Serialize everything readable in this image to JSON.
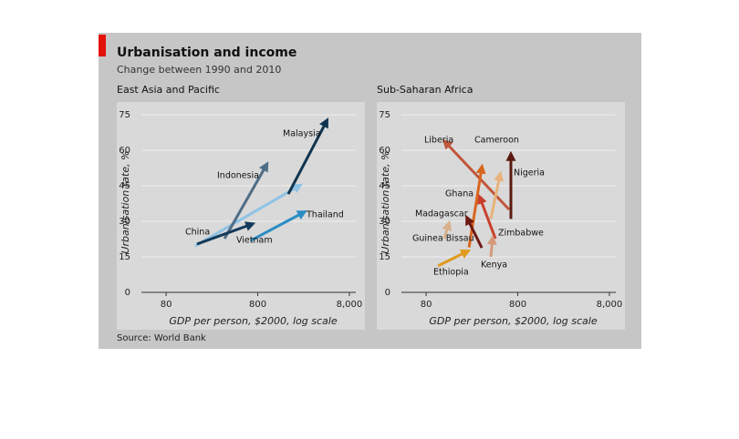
{
  "header": {
    "title": "Urbanisation and income",
    "subtitle": "Change between 1990 and 2010",
    "source": "Source: World Bank"
  },
  "chart_data": [
    {
      "type": "arrow",
      "title": "East Asia and Pacific",
      "x_label": "GDP per person, $2000, log scale",
      "y_label": "Urbanisation rate, %",
      "xscale": "log",
      "xlim": [
        43,
        9400
      ],
      "ylim": [
        0,
        80
      ],
      "xticks": [
        80,
        800,
        {
          "value": 8000,
          "label": "8,000"
        }
      ],
      "yticks": [
        0,
        15,
        30,
        45,
        60,
        75
      ],
      "grid": true,
      "series": [
        {
          "name": "China",
          "color": "#8ec3e6",
          "x": [
            166,
            2270
          ],
          "values": [
            19.6,
            45
          ]
        },
        {
          "name": "Indonesia",
          "color": "#4f6d85",
          "x": [
            347,
            996
          ],
          "values": [
            22.7,
            53.8
          ]
        },
        {
          "name": "Malaysia",
          "color": "#10344f",
          "x": [
            1723,
            4510
          ],
          "values": [
            41.5,
            72.3
          ]
        },
        {
          "name": "Thailand",
          "color": "#2b8dc4",
          "x": [
            673,
            2540
          ],
          "values": [
            21.9,
            33.8
          ]
        },
        {
          "name": "Vietnam",
          "color": "#133a5a",
          "x": [
            174,
            689
          ],
          "values": [
            20.4,
            28.8
          ]
        }
      ]
    },
    {
      "type": "arrow",
      "title": "Sub-Saharan Africa",
      "x_label": "GDP per person, $2000, log scale",
      "y_label": "Urbanisation rate, %",
      "xscale": "log",
      "xlim": [
        43,
        9400
      ],
      "ylim": [
        0,
        80
      ],
      "xticks": [
        80,
        800,
        {
          "value": 8000,
          "label": "8,000"
        }
      ],
      "yticks": [
        0,
        15,
        30,
        45,
        60,
        75
      ],
      "grid": true,
      "series": [
        {
          "name": "Liberia",
          "color": "#c0573a",
          "x": [
            643,
            129
          ],
          "values": [
            35,
            63.5
          ]
        },
        {
          "name": "Cameroon",
          "color": "#e8b27a",
          "x": [
            406,
            512
          ],
          "values": [
            31,
            49.6
          ]
        },
        {
          "name": "Nigeria",
          "color": "#5a1a10",
          "x": [
            673,
            673
          ],
          "values": [
            31,
            58
          ]
        },
        {
          "name": "Ghana",
          "color": "#d9661e",
          "x": [
            235,
            324
          ],
          "values": [
            19,
            52.7
          ]
        },
        {
          "name": "Madagascar",
          "color": "#6e1a12",
          "x": [
            324,
            225
          ],
          "values": [
            18.8,
            31.2
          ]
        },
        {
          "name": "Zimbabwe",
          "color": "#c8402c",
          "x": [
            456,
            309
          ],
          "values": [
            22.7,
            40
          ]
        },
        {
          "name": "Kenya",
          "color": "#d49a7a",
          "x": [
            406,
            425
          ],
          "values": [
            15,
            22.7
          ]
        },
        {
          "name": "Guinea Bissau",
          "color": "#d8b08c",
          "x": [
            126,
            141
          ],
          "values": [
            22.7,
            28.8
          ]
        },
        {
          "name": "Ethiopia",
          "color": "#e09a1e",
          "x": [
            108,
            225
          ],
          "values": [
            11.2,
            17.3
          ]
        }
      ]
    }
  ]
}
